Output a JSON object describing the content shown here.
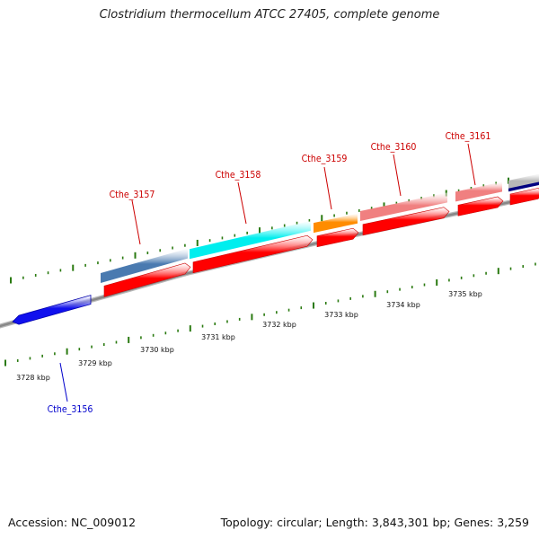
{
  "title": "Clostridium thermocellum ATCC 27405, complete genome",
  "footer": {
    "accession": "Accession: NC_009012",
    "stats": "Topology: circular; Length: 3,843,301 bp; Genes: 3,259"
  },
  "colors": {
    "backbone": "#888888",
    "tick": "#2a7a10",
    "forward_label": "#cc0000",
    "reverse_label": "#0000cc",
    "cds": "#ff0000",
    "scale_text": "#111111"
  },
  "scale_labels": [
    "3728 kbp",
    "3729 kbp",
    "3730 kbp",
    "3731 kbp",
    "3732 kbp",
    "3733 kbp",
    "3734 kbp",
    "3735 kbp"
  ],
  "genes": [
    {
      "name": "Cthe_3156",
      "strand": "reverse",
      "color": "#1010ee"
    },
    {
      "name": "Cthe_3157",
      "strand": "forward",
      "color": "#4a7ab0"
    },
    {
      "name": "Cthe_3158",
      "strand": "forward",
      "color": "#00eeee"
    },
    {
      "name": "Cthe_3159",
      "strand": "forward",
      "color": "#ff8c00"
    },
    {
      "name": "Cthe_3160",
      "strand": "forward",
      "color": "#f08080"
    },
    {
      "name": "Cthe_3161",
      "strand": "forward",
      "color": "#f08080"
    },
    {
      "name": "",
      "strand": "forward",
      "color": "#b8b8b8"
    }
  ]
}
